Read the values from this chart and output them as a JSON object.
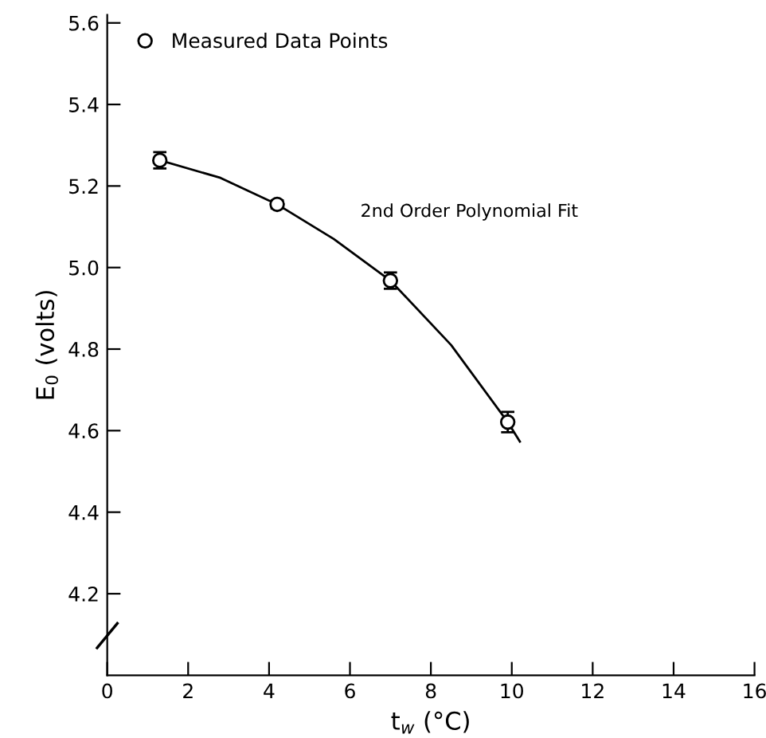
{
  "chart_data": {
    "type": "scatter",
    "xlabel": "t$_{w}$ (°C)",
    "ylabel": "E$_{0}$ (volts)",
    "xlim": [
      0,
      16
    ],
    "ylim": [
      4.0,
      5.62
    ],
    "xticks": [
      0,
      2,
      4,
      6,
      8,
      10,
      12,
      14,
      16
    ],
    "yticks": [
      4.2,
      4.4,
      4.6,
      4.8,
      {
        "value": 5,
        "label": "5.0"
      },
      5.2,
      5.4,
      5.6
    ],
    "grid": false,
    "legend": "top left",
    "marker": "circle",
    "series": [
      {
        "name": "Measured Data Points",
        "color": "#000000",
        "x": [
          1.3,
          4.2,
          7.0,
          9.9
        ],
        "values": [
          5.263,
          5.155,
          4.968,
          4.621
        ],
        "errors": [
          0.02,
          0.01,
          0.02,
          0.025
        ]
      },
      {
        "name": "2nd Order Polynomial Fit",
        "type": "line",
        "color": "#000000",
        "marker": "none",
        "line_style": "solid",
        "x": [
          1.3,
          2.8,
          4.2,
          5.6,
          7.0,
          8.5,
          9.9,
          10.2
        ],
        "values": [
          5.263,
          5.22,
          5.155,
          5.07,
          4.968,
          4.81,
          4.621,
          4.573
        ]
      }
    ]
  }
}
